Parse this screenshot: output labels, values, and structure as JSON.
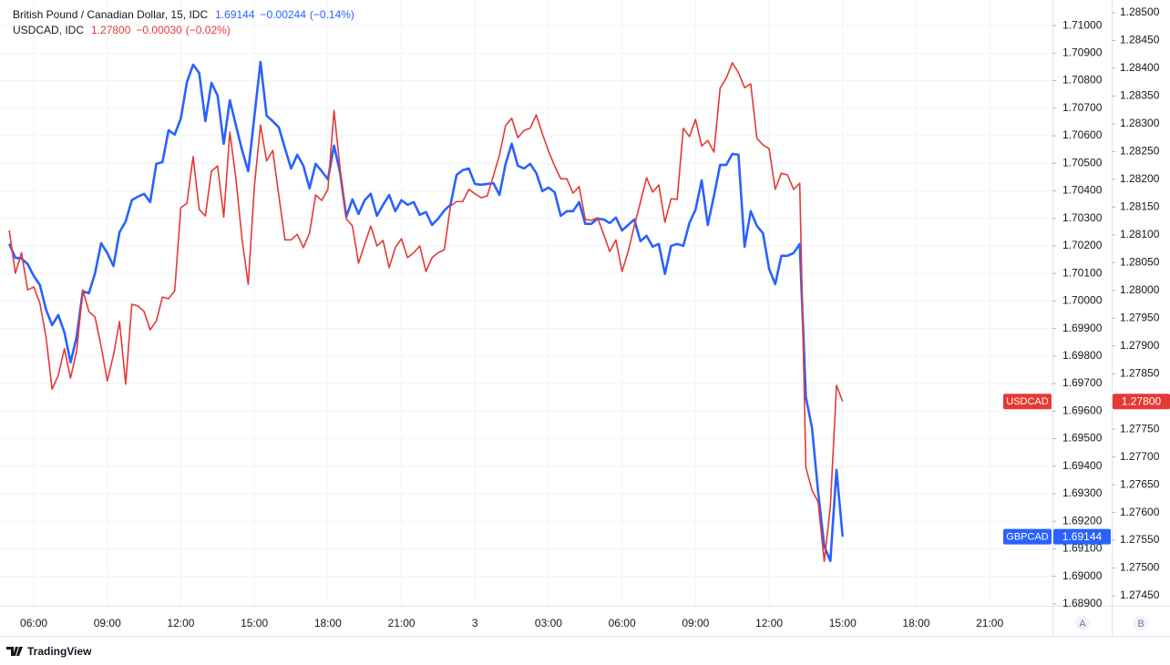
{
  "chart_data": {
    "type": "line",
    "x": [
      5,
      5.25,
      5.5,
      5.75,
      6,
      6.25,
      6.5,
      6.75,
      7,
      7.25,
      7.5,
      7.75,
      8,
      8.25,
      8.5,
      8.75,
      9,
      9.25,
      9.5,
      9.75,
      10,
      10.25,
      10.5,
      10.75,
      11,
      11.25,
      11.5,
      11.75,
      12,
      12.25,
      12.5,
      12.75,
      13,
      13.25,
      13.5,
      13.75,
      14,
      14.25,
      14.5,
      14.75,
      15,
      15.25,
      15.5,
      15.75,
      16,
      16.25,
      16.5,
      16.75,
      17,
      17.25,
      17.5,
      17.75,
      18,
      18.25,
      18.5,
      18.75,
      19,
      19.25,
      19.5,
      19.75,
      20,
      20.25,
      20.5,
      20.75,
      21,
      21.25,
      21.5,
      21.75,
      22,
      22.25,
      22.5,
      22.75,
      23,
      23.25,
      23.5,
      23.75,
      24,
      24.25,
      24.5,
      24.75,
      25,
      25.25,
      25.5,
      25.75,
      26,
      26.25,
      26.5,
      26.75,
      27,
      27.25,
      27.5,
      27.75,
      28,
      28.25,
      28.5,
      28.75,
      29,
      29.25,
      29.5,
      29.75,
      30,
      30.25,
      30.5,
      30.75,
      31,
      31.25,
      31.5,
      31.75,
      32,
      32.25,
      32.5,
      32.75,
      33,
      33.25,
      33.5,
      33.75,
      34,
      34.25,
      34.5,
      34.75,
      35,
      35.25,
      35.5,
      35.75,
      36,
      36.25,
      36.5,
      36.75,
      37,
      37.25,
      37.5,
      37.75,
      38,
      38.25,
      38.5,
      38.75,
      39
    ],
    "series": [
      {
        "name": "GBPCAD",
        "header_name": "British Pound / Canadian Dollar, 15, IDC",
        "header_values": [
          "1.69144",
          "−0.00244",
          "(−0.14%)"
        ],
        "last_label": "1.69144",
        "color": "#2962ff",
        "axis": "y",
        "values": [
          1.70207,
          1.70157,
          1.70154,
          1.70134,
          1.70091,
          1.70058,
          1.69969,
          1.69912,
          1.69949,
          1.69886,
          1.69777,
          1.69869,
          1.70035,
          1.70028,
          1.70101,
          1.7021,
          1.70174,
          1.70127,
          1.7025,
          1.70289,
          1.70366,
          1.70379,
          1.70389,
          1.70359,
          1.70498,
          1.70504,
          1.7062,
          1.70604,
          1.70663,
          1.70795,
          1.70858,
          1.70828,
          1.70653,
          1.70792,
          1.70746,
          1.70571,
          1.70729,
          1.70637,
          1.70547,
          1.70471,
          1.7067,
          1.70868,
          1.70673,
          1.70653,
          1.7063,
          1.70554,
          1.70481,
          1.70531,
          1.70491,
          1.70409,
          1.70498,
          1.70471,
          1.70442,
          1.70564,
          1.70465,
          1.70306,
          1.70369,
          1.70316,
          1.70366,
          1.70389,
          1.70309,
          1.70349,
          1.70385,
          1.70326,
          1.70366,
          1.70349,
          1.70359,
          1.70313,
          1.70323,
          1.70276,
          1.70299,
          1.70329,
          1.70349,
          1.70458,
          1.70475,
          1.70481,
          1.70425,
          1.70422,
          1.70425,
          1.70428,
          1.70385,
          1.70498,
          1.70571,
          1.70491,
          1.70481,
          1.70498,
          1.70465,
          1.70399,
          1.70412,
          1.70395,
          1.70309,
          1.70326,
          1.70326,
          1.70359,
          1.7028,
          1.7028,
          1.70299,
          1.70296,
          1.70283,
          1.70303,
          1.70256,
          1.70276,
          1.70296,
          1.70217,
          1.70237,
          1.70197,
          1.70207,
          1.70098,
          1.702,
          1.70207,
          1.702,
          1.70283,
          1.70332,
          1.70438,
          1.70276,
          1.70382,
          1.70494,
          1.70494,
          1.70534,
          1.70531,
          1.70197,
          1.70326,
          1.70273,
          1.70246,
          1.70117,
          1.70061,
          1.70164,
          1.70164,
          1.70174,
          1.70207,
          1.69651,
          1.69539,
          1.69307,
          1.69109,
          1.69056,
          1.69387,
          1.69144
        ]
      },
      {
        "name": "USDCAD",
        "header_name": "USDCAD, IDC",
        "header_values": [
          "1.27800",
          "−0.00030",
          "(−0.02%)"
        ],
        "last_label": "1.27800",
        "color": "#e53935",
        "axis": "y2",
        "values": [
          1.28108,
          1.28031,
          1.28068,
          1.28001,
          1.28006,
          1.27977,
          1.27916,
          1.27822,
          1.27847,
          1.27895,
          1.27842,
          1.27891,
          1.28001,
          1.27962,
          1.27952,
          1.27899,
          1.27837,
          1.27883,
          1.27944,
          1.27831,
          1.27975,
          1.27972,
          1.27962,
          1.27929,
          1.27945,
          1.27988,
          1.27985,
          1.27999,
          1.28149,
          1.28157,
          1.28241,
          1.28146,
          1.28134,
          1.28215,
          1.28224,
          1.28132,
          1.28285,
          1.282,
          1.28091,
          1.28011,
          1.28187,
          1.28298,
          1.28233,
          1.28252,
          1.2817,
          1.28091,
          1.28091,
          1.28101,
          1.28077,
          1.28103,
          1.28172,
          1.28162,
          1.28182,
          1.28324,
          1.28218,
          1.28129,
          1.28116,
          1.28049,
          1.28083,
          1.28116,
          1.2808,
          1.2809,
          1.28041,
          1.28077,
          1.28093,
          1.28059,
          1.28068,
          1.2808,
          1.28034,
          1.28059,
          1.28068,
          1.28073,
          1.28152,
          1.2816,
          1.2816,
          1.28182,
          1.28174,
          1.28167,
          1.2817,
          1.28206,
          1.28244,
          1.28297,
          1.2831,
          1.28275,
          1.28288,
          1.28292,
          1.28316,
          1.28282,
          1.28251,
          1.28224,
          1.28201,
          1.28201,
          1.28175,
          1.28187,
          1.28128,
          1.28126,
          1.28131,
          1.28101,
          1.2807,
          1.28091,
          1.28034,
          1.2807,
          1.28116,
          1.28159,
          1.28203,
          1.28177,
          1.2819,
          1.28123,
          1.28165,
          1.28164,
          1.28292,
          1.28277,
          1.28308,
          1.2826,
          1.2827,
          1.28249,
          1.28364,
          1.28382,
          1.2841,
          1.28392,
          1.28365,
          1.28372,
          1.28274,
          1.28262,
          1.28255,
          1.28182,
          1.28211,
          1.28208,
          1.28182,
          1.28193,
          1.27681,
          1.2764,
          1.27619,
          1.27512,
          1.27611,
          1.27829,
          1.278
        ]
      }
    ],
    "xlim": [
      4.92,
      47.56
    ],
    "xticks": [
      {
        "value": 6,
        "label": "06:00"
      },
      {
        "value": 9,
        "label": "09:00"
      },
      {
        "value": 12,
        "label": "12:00"
      },
      {
        "value": 15,
        "label": "15:00"
      },
      {
        "value": 18,
        "label": "18:00"
      },
      {
        "value": 21,
        "label": "21:00"
      },
      {
        "value": 24,
        "label": "3"
      },
      {
        "value": 27,
        "label": "03:00"
      },
      {
        "value": 30,
        "label": "06:00"
      },
      {
        "value": 33,
        "label": "09:00"
      },
      {
        "value": 36,
        "label": "12:00"
      },
      {
        "value": 39,
        "label": "15:00"
      },
      {
        "value": 42,
        "label": "18:00"
      },
      {
        "value": 45,
        "label": "21:00"
      }
    ],
    "ylim": [
      1.68893,
      1.71093
    ],
    "yticks": [
      {
        "value": 1.689,
        "label": "1.68900"
      },
      {
        "value": 1.69,
        "label": "1.69000"
      },
      {
        "value": 1.691,
        "label": "1.69100"
      },
      {
        "value": 1.692,
        "label": "1.69200"
      },
      {
        "value": 1.693,
        "label": "1.69300"
      },
      {
        "value": 1.694,
        "label": "1.69400"
      },
      {
        "value": 1.695,
        "label": "1.69500"
      },
      {
        "value": 1.696,
        "label": "1.69600"
      },
      {
        "value": 1.697,
        "label": "1.69700"
      },
      {
        "value": 1.698,
        "label": "1.69800"
      },
      {
        "value": 1.699,
        "label": "1.69900"
      },
      {
        "value": 1.7,
        "label": "1.70000"
      },
      {
        "value": 1.701,
        "label": "1.70100"
      },
      {
        "value": 1.702,
        "label": "1.70200"
      },
      {
        "value": 1.703,
        "label": "1.70300"
      },
      {
        "value": 1.704,
        "label": "1.70400"
      },
      {
        "value": 1.705,
        "label": "1.70500"
      },
      {
        "value": 1.706,
        "label": "1.70600"
      },
      {
        "value": 1.707,
        "label": "1.70700"
      },
      {
        "value": 1.708,
        "label": "1.70800"
      },
      {
        "value": 1.709,
        "label": "1.70900"
      },
      {
        "value": 1.71,
        "label": "1.71000"
      }
    ],
    "y2lim": [
      1.27432,
      1.28523
    ],
    "y2ticks": [
      {
        "value": 1.2745,
        "label": "1.27450"
      },
      {
        "value": 1.275,
        "label": "1.27500"
      },
      {
        "value": 1.2755,
        "label": "1.27550"
      },
      {
        "value": 1.276,
        "label": "1.27600"
      },
      {
        "value": 1.2765,
        "label": "1.27650"
      },
      {
        "value": 1.277,
        "label": "1.27700"
      },
      {
        "value": 1.2775,
        "label": "1.27750"
      },
      {
        "value": 1.278,
        "label": "1.27800"
      },
      {
        "value": 1.2785,
        "label": "1.27850"
      },
      {
        "value": 1.279,
        "label": "1.27900"
      },
      {
        "value": 1.2795,
        "label": "1.27950"
      },
      {
        "value": 1.28,
        "label": "1.28000"
      },
      {
        "value": 1.2805,
        "label": "1.28050"
      },
      {
        "value": 1.281,
        "label": "1.28100"
      },
      {
        "value": 1.2815,
        "label": "1.28150"
      },
      {
        "value": 1.282,
        "label": "1.28200"
      },
      {
        "value": 1.2825,
        "label": "1.28250"
      },
      {
        "value": 1.283,
        "label": "1.28300"
      },
      {
        "value": 1.2835,
        "label": "1.28350"
      },
      {
        "value": 1.284,
        "label": "1.28400"
      },
      {
        "value": 1.2845,
        "label": "1.28450"
      },
      {
        "value": 1.285,
        "label": "1.28500"
      }
    ],
    "grid": true,
    "axis_labels": [
      "A",
      "B"
    ],
    "brand": "TradingView"
  }
}
